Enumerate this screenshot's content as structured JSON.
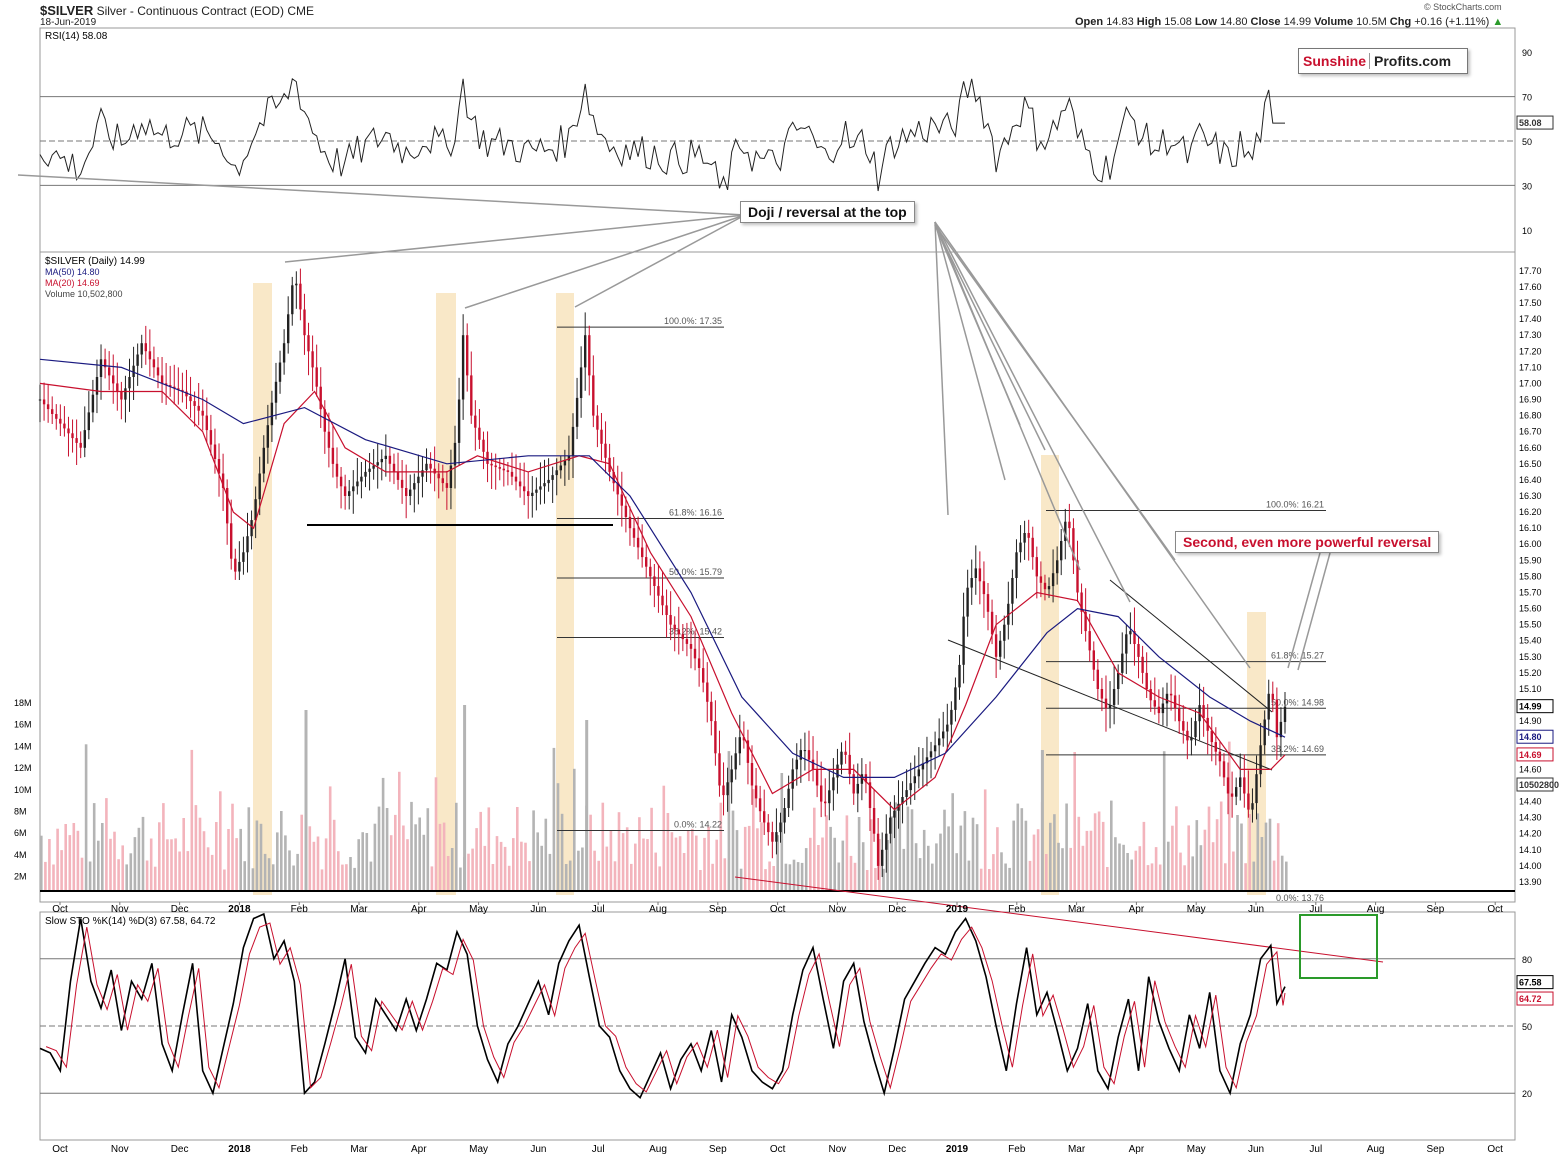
{
  "header": {
    "symbol": "$SILVER",
    "name": "Silver - Continuous Contract (EOD)",
    "exchange": "CME",
    "date": "18-Jun-2019",
    "open_label": "Open",
    "open": "14.83",
    "high_label": "High",
    "high": "15.08",
    "low_label": "Low",
    "low": "14.80",
    "close_label": "Close",
    "close": "14.99",
    "volume_label": "Volume",
    "volume": "10.5M",
    "chg_label": "Chg",
    "chg": "+0.16 (+1.11%)",
    "watermark": "© StockCharts.com"
  },
  "logo": {
    "part1": "Sunshine",
    "part2": "Profits.com"
  },
  "annotations": {
    "doji": "Doji / reversal at the top",
    "second": "Second, even more powerful reversal"
  },
  "colors": {
    "price_red": "#c8102e",
    "ma50": "#1a1a80",
    "ma20": "#c8102e",
    "highlight": "#f7e0b5",
    "vol_red": "#f3b4bc",
    "vol_gray": "#b4b4b4",
    "sto_d": "#c8102e",
    "green_box": "#2a9a2a"
  },
  "chart_data": [
    {
      "type": "line",
      "title": "RSI(14) 58.08",
      "series": [
        {
          "name": "RSI(14)",
          "last": 58.08
        }
      ],
      "y_ticks": [
        90,
        70,
        50,
        30,
        10
      ],
      "ylim": [
        0,
        100
      ],
      "ref_lines": [
        70,
        50,
        30
      ],
      "value_label": "58.08"
    },
    {
      "type": "line",
      "title": "$SILVER (Daily) 14.99",
      "legend": [
        "MA(50) 14.80",
        "MA(20) 14.69",
        "Volume 10,502,800"
      ],
      "x_months": [
        "Oct",
        "Nov",
        "Dec",
        "2018",
        "Feb",
        "Mar",
        "Apr",
        "May",
        "Jun",
        "Jul",
        "Aug",
        "Sep",
        "Oct",
        "Nov",
        "Dec",
        "2019",
        "Feb",
        "Mar",
        "Apr",
        "May",
        "Jun",
        "Jul",
        "Aug",
        "Sep",
        "Oct"
      ],
      "y_ticks": [
        17.7,
        17.6,
        17.5,
        17.4,
        17.3,
        17.2,
        17.1,
        17.0,
        16.9,
        16.8,
        16.7,
        16.6,
        16.5,
        16.4,
        16.3,
        16.2,
        16.1,
        16.0,
        15.9,
        15.8,
        15.7,
        15.6,
        15.5,
        15.4,
        15.3,
        15.2,
        15.1,
        15.0,
        14.9,
        14.8,
        14.7,
        14.6,
        14.5,
        14.4,
        14.3,
        14.2,
        14.1,
        14.0,
        13.9
      ],
      "ylim": [
        13.85,
        17.78
      ],
      "volume_ticks": [
        "18M",
        "16M",
        "14M",
        "12M",
        "10M",
        "8M",
        "6M",
        "4M",
        "2M"
      ],
      "price_path": [
        [
          0,
          16.9
        ],
        [
          10,
          16.75
        ],
        [
          20,
          16.6
        ],
        [
          30,
          17.15
        ],
        [
          40,
          16.9
        ],
        [
          50,
          17.25
        ],
        [
          60,
          17.0
        ],
        [
          70,
          16.95
        ],
        [
          80,
          16.8
        ],
        [
          90,
          16.35
        ],
        [
          95,
          15.8
        ],
        [
          100,
          15.95
        ],
        [
          105,
          16.2
        ],
        [
          110,
          16.6
        ],
        [
          115,
          16.95
        ],
        [
          120,
          17.25
        ],
        [
          125,
          17.7
        ],
        [
          130,
          17.3
        ],
        [
          135,
          17.05
        ],
        [
          140,
          16.7
        ],
        [
          145,
          16.45
        ],
        [
          150,
          16.3
        ],
        [
          160,
          16.45
        ],
        [
          170,
          16.55
        ],
        [
          180,
          16.3
        ],
        [
          190,
          16.5
        ],
        [
          200,
          16.35
        ],
        [
          205,
          16.7
        ],
        [
          208,
          17.3
        ],
        [
          212,
          16.8
        ],
        [
          220,
          16.5
        ],
        [
          230,
          16.45
        ],
        [
          240,
          16.3
        ],
        [
          250,
          16.4
        ],
        [
          260,
          16.55
        ],
        [
          265,
          17.0
        ],
        [
          268,
          17.3
        ],
        [
          272,
          16.8
        ],
        [
          280,
          16.45
        ],
        [
          290,
          16.1
        ],
        [
          300,
          15.8
        ],
        [
          310,
          15.5
        ],
        [
          320,
          15.35
        ],
        [
          325,
          15.2
        ],
        [
          330,
          14.9
        ],
        [
          335,
          14.4
        ],
        [
          340,
          14.6
        ],
        [
          345,
          14.85
        ],
        [
          350,
          14.5
        ],
        [
          355,
          14.3
        ],
        [
          360,
          14.15
        ],
        [
          365,
          14.3
        ],
        [
          370,
          14.6
        ],
        [
          375,
          14.75
        ],
        [
          380,
          14.6
        ],
        [
          385,
          14.35
        ],
        [
          390,
          14.55
        ],
        [
          395,
          14.75
        ],
        [
          400,
          14.45
        ],
        [
          405,
          14.6
        ],
        [
          410,
          14.2
        ],
        [
          412,
          14.0
        ],
        [
          418,
          14.3
        ],
        [
          425,
          14.45
        ],
        [
          432,
          14.6
        ],
        [
          440,
          14.75
        ],
        [
          447,
          14.9
        ],
        [
          452,
          15.25
        ],
        [
          455,
          15.7
        ],
        [
          460,
          15.85
        ],
        [
          465,
          15.65
        ],
        [
          470,
          15.3
        ],
        [
          475,
          15.55
        ],
        [
          480,
          15.95
        ],
        [
          485,
          16.1
        ],
        [
          490,
          15.8
        ],
        [
          495,
          15.7
        ],
        [
          500,
          15.9
        ],
        [
          505,
          16.2
        ],
        [
          510,
          15.7
        ],
        [
          515,
          15.4
        ],
        [
          520,
          15.1
        ],
        [
          525,
          14.95
        ],
        [
          530,
          15.2
        ],
        [
          535,
          15.5
        ],
        [
          540,
          15.3
        ],
        [
          545,
          15.05
        ],
        [
          550,
          14.95
        ],
        [
          555,
          15.1
        ],
        [
          560,
          14.9
        ],
        [
          565,
          14.75
        ],
        [
          570,
          15.0
        ],
        [
          575,
          14.8
        ],
        [
          580,
          14.65
        ],
        [
          585,
          14.4
        ],
        [
          590,
          14.55
        ],
        [
          595,
          14.3
        ],
        [
          600,
          14.75
        ],
        [
          605,
          15.15
        ],
        [
          608,
          14.8
        ],
        [
          612,
          14.99
        ]
      ],
      "ma20_path": [
        [
          0,
          17.0
        ],
        [
          30,
          16.95
        ],
        [
          60,
          16.95
        ],
        [
          80,
          16.7
        ],
        [
          95,
          16.2
        ],
        [
          105,
          16.1
        ],
        [
          120,
          16.75
        ],
        [
          135,
          16.95
        ],
        [
          150,
          16.6
        ],
        [
          170,
          16.45
        ],
        [
          200,
          16.45
        ],
        [
          215,
          16.55
        ],
        [
          240,
          16.45
        ],
        [
          265,
          16.55
        ],
        [
          280,
          16.5
        ],
        [
          300,
          15.95
        ],
        [
          320,
          15.55
        ],
        [
          340,
          14.95
        ],
        [
          360,
          14.45
        ],
        [
          380,
          14.6
        ],
        [
          400,
          14.6
        ],
        [
          420,
          14.35
        ],
        [
          440,
          14.55
        ],
        [
          455,
          15.0
        ],
        [
          470,
          15.5
        ],
        [
          490,
          15.7
        ],
        [
          510,
          15.65
        ],
        [
          530,
          15.2
        ],
        [
          550,
          15.05
        ],
        [
          570,
          14.95
        ],
        [
          590,
          14.6
        ],
        [
          605,
          14.6
        ],
        [
          612,
          14.69
        ]
      ],
      "ma50_path": [
        [
          0,
          17.15
        ],
        [
          40,
          17.1
        ],
        [
          80,
          16.9
        ],
        [
          100,
          16.75
        ],
        [
          130,
          16.85
        ],
        [
          160,
          16.65
        ],
        [
          200,
          16.5
        ],
        [
          240,
          16.55
        ],
        [
          270,
          16.55
        ],
        [
          290,
          16.3
        ],
        [
          320,
          15.7
        ],
        [
          345,
          15.05
        ],
        [
          370,
          14.7
        ],
        [
          395,
          14.55
        ],
        [
          420,
          14.55
        ],
        [
          445,
          14.7
        ],
        [
          470,
          15.05
        ],
        [
          495,
          15.45
        ],
        [
          510,
          15.6
        ],
        [
          530,
          15.55
        ],
        [
          550,
          15.3
        ],
        [
          575,
          15.05
        ],
        [
          595,
          14.9
        ],
        [
          612,
          14.8
        ]
      ],
      "fib_sets": [
        {
          "levels": [
            "100.0%: 17.35",
            "61.8%: 16.16",
            "50.0%: 15.79",
            "38.2%: 15.42",
            "0.0%: 14.22"
          ],
          "values": [
            17.35,
            16.16,
            15.79,
            15.42,
            14.22
          ]
        },
        {
          "levels": [
            "100.0%: 16.21",
            "61.8%: 15.27",
            "50.0%: 14.98",
            "38.2%: 14.69",
            "0.0%: 13.76"
          ],
          "values": [
            16.21,
            15.27,
            14.98,
            14.69,
            13.76
          ]
        }
      ],
      "support_line": 16.12,
      "right_labels": [
        "14.99",
        "14.80",
        "14.69",
        "10502800"
      ]
    },
    {
      "type": "line",
      "title": "Slow STO %K(14) %D(3) 67.58, 64.72",
      "series": [
        {
          "name": "%K(14)",
          "last": 67.58
        },
        {
          "name": "%D(3)",
          "last": 64.72
        }
      ],
      "y_ticks": [
        80,
        50,
        20
      ],
      "ylim": [
        0,
        100
      ],
      "value_labels": [
        "67.58",
        "64.72"
      ],
      "path": [
        [
          0,
          40
        ],
        [
          5,
          38
        ],
        [
          10,
          30
        ],
        [
          15,
          70
        ],
        [
          20,
          98
        ],
        [
          25,
          70
        ],
        [
          30,
          58
        ],
        [
          35,
          75
        ],
        [
          40,
          48
        ],
        [
          45,
          70
        ],
        [
          50,
          62
        ],
        [
          55,
          78
        ],
        [
          60,
          42
        ],
        [
          65,
          30
        ],
        [
          70,
          55
        ],
        [
          75,
          78
        ],
        [
          80,
          30
        ],
        [
          85,
          20
        ],
        [
          90,
          40
        ],
        [
          95,
          60
        ],
        [
          100,
          85
        ],
        [
          105,
          98
        ],
        [
          110,
          100
        ],
        [
          115,
          80
        ],
        [
          120,
          88
        ],
        [
          125,
          70
        ],
        [
          130,
          20
        ],
        [
          135,
          25
        ],
        [
          140,
          42
        ],
        [
          145,
          60
        ],
        [
          150,
          80
        ],
        [
          155,
          45
        ],
        [
          160,
          38
        ],
        [
          165,
          62
        ],
        [
          170,
          55
        ],
        [
          175,
          48
        ],
        [
          180,
          62
        ],
        [
          185,
          48
        ],
        [
          190,
          62
        ],
        [
          195,
          78
        ],
        [
          200,
          75
        ],
        [
          205,
          92
        ],
        [
          210,
          82
        ],
        [
          215,
          50
        ],
        [
          220,
          35
        ],
        [
          225,
          25
        ],
        [
          230,
          42
        ],
        [
          235,
          50
        ],
        [
          240,
          60
        ],
        [
          245,
          70
        ],
        [
          250,
          55
        ],
        [
          255,
          78
        ],
        [
          260,
          88
        ],
        [
          265,
          95
        ],
        [
          270,
          72
        ],
        [
          275,
          50
        ],
        [
          280,
          45
        ],
        [
          285,
          30
        ],
        [
          290,
          22
        ],
        [
          295,
          18
        ],
        [
          300,
          28
        ],
        [
          305,
          38
        ],
        [
          310,
          22
        ],
        [
          315,
          35
        ],
        [
          320,
          42
        ],
        [
          325,
          30
        ],
        [
          330,
          48
        ],
        [
          335,
          25
        ],
        [
          340,
          55
        ],
        [
          345,
          45
        ],
        [
          350,
          30
        ],
        [
          355,
          25
        ],
        [
          360,
          22
        ],
        [
          365,
          30
        ],
        [
          370,
          55
        ],
        [
          375,
          75
        ],
        [
          380,
          85
        ],
        [
          385,
          62
        ],
        [
          390,
          40
        ],
        [
          395,
          70
        ],
        [
          400,
          78
        ],
        [
          405,
          52
        ],
        [
          410,
          35
        ],
        [
          415,
          20
        ],
        [
          420,
          40
        ],
        [
          425,
          62
        ],
        [
          430,
          70
        ],
        [
          435,
          78
        ],
        [
          440,
          85
        ],
        [
          445,
          82
        ],
        [
          450,
          92
        ],
        [
          455,
          98
        ],
        [
          460,
          88
        ],
        [
          465,
          72
        ],
        [
          470,
          50
        ],
        [
          475,
          30
        ],
        [
          480,
          60
        ],
        [
          485,
          85
        ],
        [
          490,
          55
        ],
        [
          495,
          65
        ],
        [
          500,
          48
        ],
        [
          505,
          30
        ],
        [
          510,
          40
        ],
        [
          515,
          60
        ],
        [
          520,
          30
        ],
        [
          525,
          22
        ],
        [
          530,
          45
        ],
        [
          535,
          62
        ],
        [
          540,
          30
        ],
        [
          545,
          72
        ],
        [
          550,
          52
        ],
        [
          555,
          40
        ],
        [
          560,
          30
        ],
        [
          565,
          55
        ],
        [
          570,
          40
        ],
        [
          575,
          65
        ],
        [
          580,
          30
        ],
        [
          585,
          20
        ],
        [
          590,
          42
        ],
        [
          595,
          55
        ],
        [
          600,
          80
        ],
        [
          605,
          86
        ],
        [
          608,
          60
        ],
        [
          612,
          67.58
        ]
      ]
    }
  ]
}
